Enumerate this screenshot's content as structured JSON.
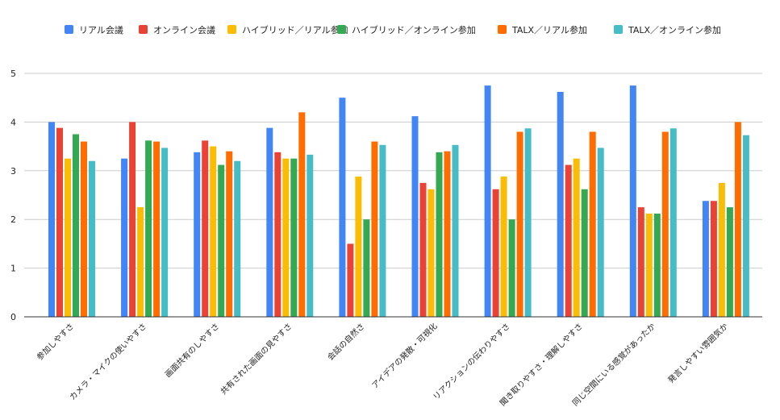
{
  "chart_data": {
    "type": "bar",
    "title": "",
    "xlabel": "",
    "ylabel": "",
    "ylim": [
      0,
      5
    ],
    "yticks": [
      0,
      1,
      2,
      3,
      4,
      5
    ],
    "grid": true,
    "legend_position": "top",
    "categories": [
      "参加しやすさ",
      "カメラ・マイクの使いやすさ",
      "画面共有のしやすさ",
      "共有された画面の見やすさ",
      "会話の自然さ",
      "アイデアの発散・可視化",
      "リアクションの伝わりやすさ",
      "聞き取りやすさ・理解しやすさ",
      "同じ空間にいる感覚があったか",
      "発言しやすい雰囲気か"
    ],
    "series": [
      {
        "name": "リアル会議",
        "color": "#4285F4",
        "values": [
          4.0,
          3.25,
          3.38,
          3.88,
          4.5,
          4.12,
          4.75,
          4.62,
          4.75,
          2.38
        ]
      },
      {
        "name": "オンライン会議",
        "color": "#EA4335",
        "values": [
          3.88,
          4.0,
          3.62,
          3.38,
          1.5,
          2.75,
          2.62,
          3.12,
          2.25,
          2.38
        ]
      },
      {
        "name": "ハイブリッド／リアル参加",
        "color": "#FBBC04",
        "values": [
          3.25,
          2.25,
          3.5,
          3.25,
          2.88,
          2.62,
          2.88,
          3.25,
          2.12,
          2.75
        ]
      },
      {
        "name": "ハイブリッド／オンライン参加",
        "color": "#34A853",
        "values": [
          3.75,
          3.62,
          3.12,
          3.25,
          2.0,
          3.38,
          2.0,
          2.62,
          2.12,
          2.25
        ]
      },
      {
        "name": "TALX／リアル参加",
        "color": "#FF6D01",
        "values": [
          3.6,
          3.6,
          3.4,
          4.2,
          3.6,
          3.4,
          3.8,
          3.8,
          3.8,
          4.0
        ]
      },
      {
        "name": "TALX／オンライン参加",
        "color": "#46BDC6",
        "values": [
          3.2,
          3.47,
          3.2,
          3.33,
          3.53,
          3.53,
          3.87,
          3.47,
          3.87,
          3.73
        ]
      }
    ]
  }
}
